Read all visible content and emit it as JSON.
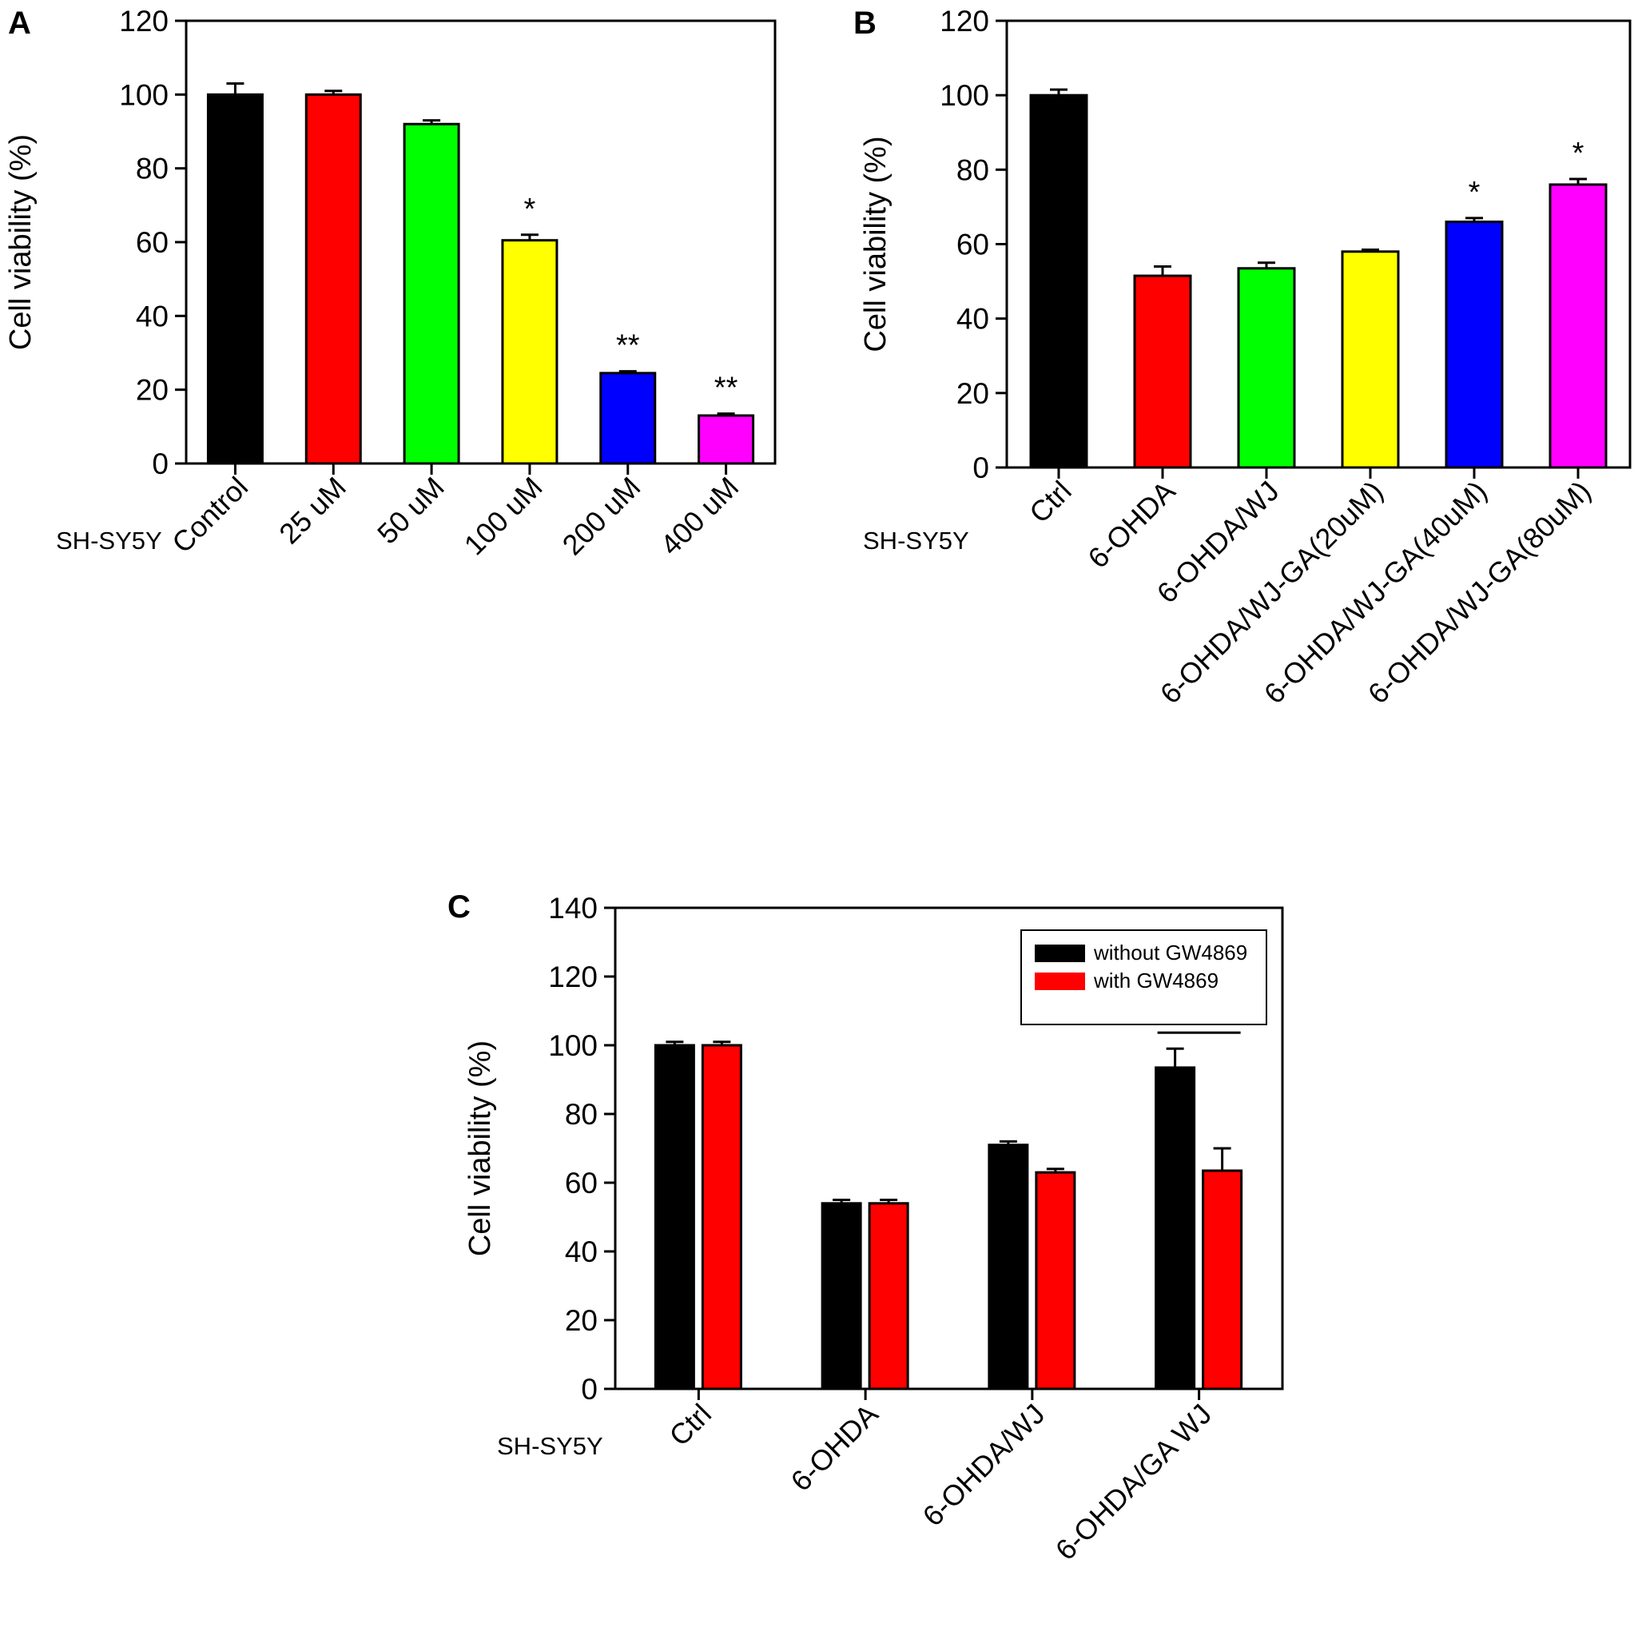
{
  "chart_data": [
    {
      "panel": "A",
      "type": "bar",
      "ylabel": "Cell viability (%)",
      "row_label": "SH-SY5Y",
      "ylim": [
        0,
        120
      ],
      "yticks": [
        0,
        20,
        40,
        60,
        80,
        100,
        120
      ],
      "categories": [
        "Control",
        "25 uM",
        "50 uM",
        "100 uM",
        "200 uM",
        "400 uM"
      ],
      "values": [
        100,
        100,
        92,
        60.5,
        24.5,
        13
      ],
      "errors": [
        3,
        1,
        1,
        1.5,
        0.5,
        0.5
      ],
      "colors": [
        "#000000",
        "#ff0000",
        "#00ff00",
        "#ffff00",
        "#0000ff",
        "#ff00ff"
      ],
      "annotations": [
        "",
        "",
        "",
        "*",
        "**",
        "**"
      ],
      "grid": false
    },
    {
      "panel": "B",
      "type": "bar",
      "ylabel": "Cell viability (%)",
      "row_label": "SH-SY5Y",
      "ylim": [
        0,
        120
      ],
      "yticks": [
        0,
        20,
        40,
        60,
        80,
        100,
        120
      ],
      "categories": [
        "Ctrl",
        "6-OHDA",
        "6-OHDA/WJ",
        "6-OHDA/WJ-GA(20uM)",
        "6-OHDA/WJ-GA(40uM)",
        "6-OHDA/WJ-GA(80uM)"
      ],
      "values": [
        100,
        51.5,
        53.5,
        58,
        66,
        76
      ],
      "errors": [
        1.5,
        2.5,
        1.5,
        0.5,
        1,
        1.5
      ],
      "colors": [
        "#000000",
        "#ff0000",
        "#00ff00",
        "#ffff00",
        "#0000ff",
        "#ff00ff"
      ],
      "annotations": [
        "",
        "",
        "",
        "",
        "*",
        "*"
      ],
      "grid": false
    },
    {
      "panel": "C",
      "type": "bar",
      "ylabel": "Cell viability (%)",
      "row_label": "SH-SY5Y",
      "ylim": [
        0,
        140
      ],
      "yticks": [
        0,
        20,
        40,
        60,
        80,
        100,
        120,
        140
      ],
      "categories": [
        "Ctrl",
        "6-OHDA",
        "6-OHDA/WJ",
        "6-OHDA/GA WJ"
      ],
      "series": [
        {
          "name": "without GW4869",
          "color": "#000000",
          "values": [
            100,
            54,
            71,
            93.5
          ],
          "errors": [
            1,
            1,
            1,
            5.5
          ]
        },
        {
          "name": "with GW4869",
          "color": "#ff0000",
          "values": [
            100,
            54,
            63,
            63.5
          ],
          "errors": [
            1,
            1,
            1,
            6.5
          ]
        }
      ],
      "legend_position": "top-right",
      "significance": {
        "category_index": 3,
        "label": "*"
      },
      "grid": false
    }
  ]
}
